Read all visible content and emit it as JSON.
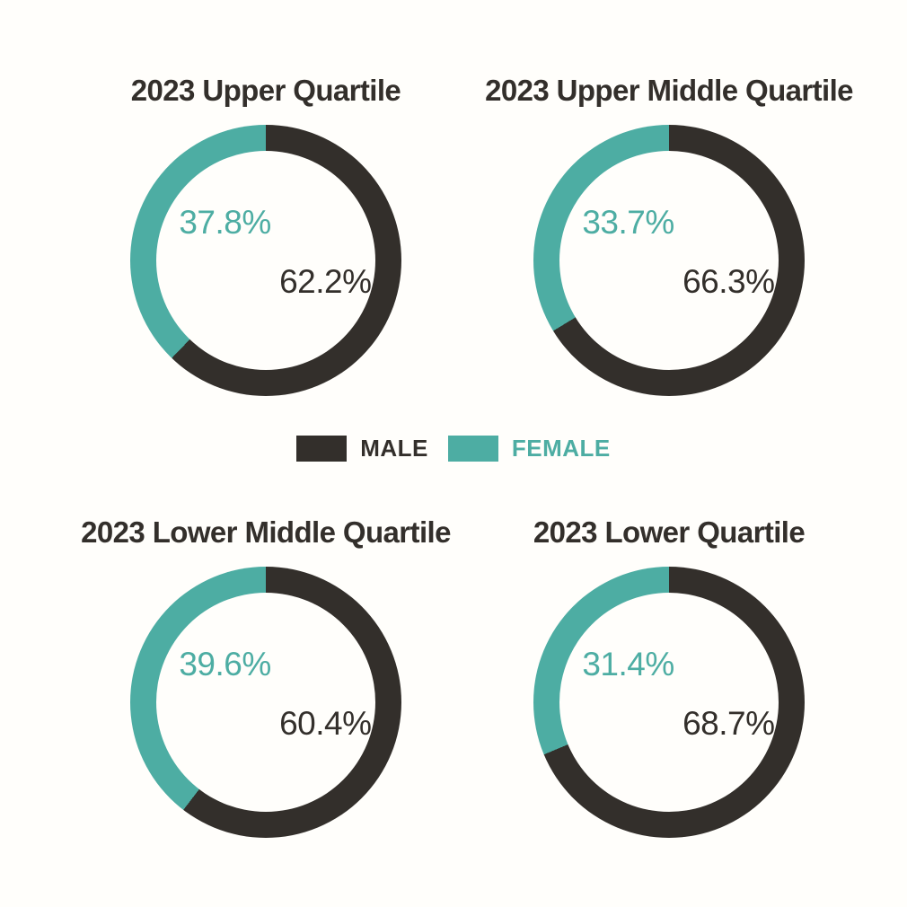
{
  "colors": {
    "male": "#332f2b",
    "female": "#4dada3",
    "background": "#fffefb"
  },
  "legend": {
    "male_label": "MALE",
    "female_label": "FEMALE"
  },
  "chart_data": {
    "type": "pie",
    "subtype": "donut-small-multiples",
    "unit": "%",
    "legend": [
      "MALE",
      "FEMALE"
    ],
    "legend_position": "center-between-rows",
    "series_colors": {
      "MALE": "#332f2b",
      "FEMALE": "#4dada3"
    },
    "charts": [
      {
        "title": "2023 Upper Quartile",
        "male": 62.2,
        "female": 37.8,
        "male_label": "62.2%",
        "female_label": "37.8%"
      },
      {
        "title": "2023 Upper Middle Quartile",
        "male": 66.3,
        "female": 33.7,
        "male_label": "66.3%",
        "female_label": "33.7%"
      },
      {
        "title": "2023 Lower Middle Quartile",
        "male": 60.4,
        "female": 39.6,
        "male_label": "60.4%",
        "female_label": "39.6%"
      },
      {
        "title": "2023 Lower Quartile",
        "male": 68.7,
        "female": 31.4,
        "male_label": "68.7%",
        "female_label": "31.4%"
      }
    ]
  }
}
